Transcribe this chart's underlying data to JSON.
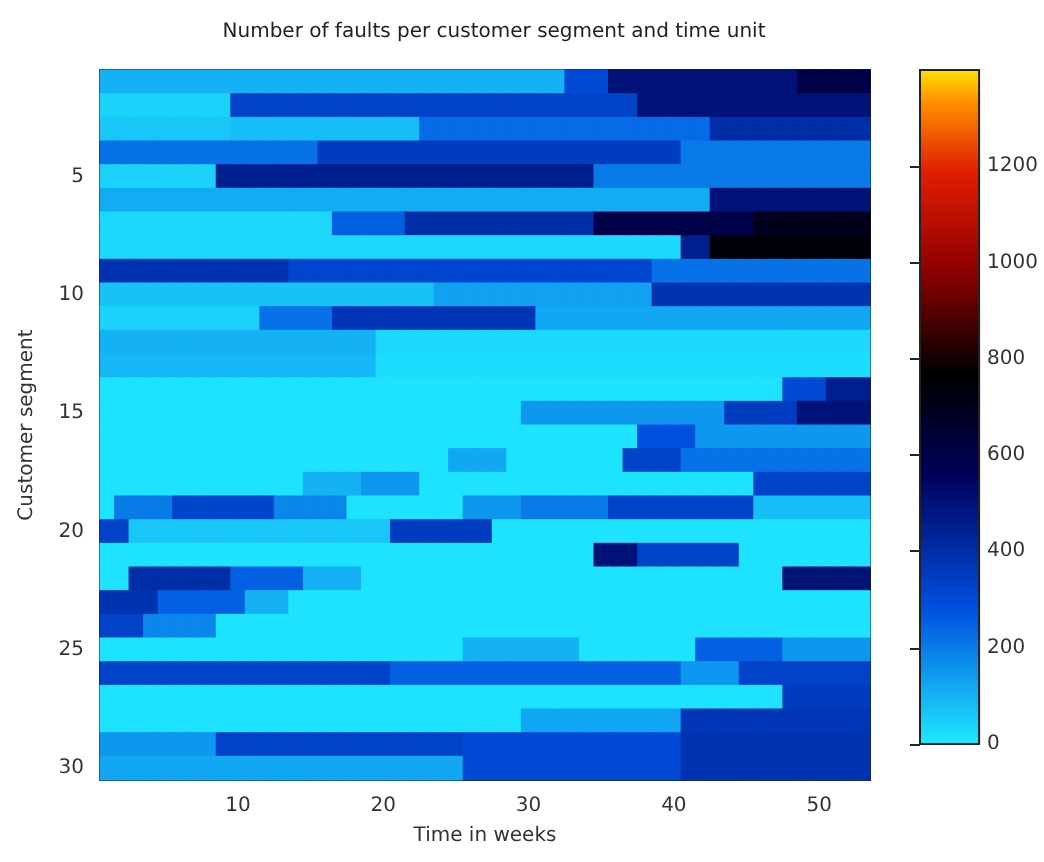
{
  "chart_data": {
    "type": "heatmap",
    "title": "Number of faults per customer segment and time unit",
    "xlabel": "Time in weeks",
    "ylabel": "Customer segment",
    "categories": [
      null,
      null,
      null,
      null,
      null,
      null,
      null,
      null,
      null,
      "10",
      null,
      null,
      null,
      null,
      null,
      null,
      null,
      null,
      null,
      "20",
      null,
      null,
      null,
      null,
      null,
      null,
      null,
      null,
      null,
      "30",
      null,
      null,
      null,
      null,
      null,
      null,
      null,
      null,
      null,
      "40",
      null,
      null,
      null,
      null,
      null,
      null,
      null,
      null,
      null,
      "50",
      null,
      null,
      null
    ],
    "y_categories": [
      null,
      null,
      null,
      null,
      "5",
      null,
      null,
      null,
      null,
      "10",
      null,
      null,
      null,
      null,
      "15",
      null,
      null,
      null,
      null,
      "20",
      null,
      null,
      null,
      null,
      "25",
      null,
      null,
      null,
      null,
      "30"
    ],
    "clim": [
      0,
      1400
    ],
    "cticks": [
      0,
      200,
      400,
      600,
      800,
      1000,
      1200
    ],
    "cells": [
      [
        100,
        100,
        100,
        100,
        100,
        100,
        100,
        100,
        100,
        100,
        100,
        100,
        100,
        100,
        100,
        100,
        100,
        100,
        100,
        100,
        100,
        100,
        100,
        100,
        100,
        100,
        100,
        100,
        100,
        100,
        100,
        100,
        300,
        300,
        300,
        500,
        500,
        500,
        500,
        500,
        500,
        500,
        500,
        500,
        500,
        500,
        500,
        500,
        600,
        600,
        600,
        600,
        600
      ],
      [
        40,
        40,
        40,
        40,
        40,
        40,
        40,
        40,
        40,
        330,
        330,
        330,
        330,
        330,
        330,
        330,
        330,
        330,
        330,
        330,
        330,
        330,
        330,
        330,
        330,
        330,
        330,
        330,
        330,
        330,
        330,
        330,
        330,
        330,
        330,
        330,
        330,
        500,
        500,
        500,
        500,
        500,
        500,
        500,
        500,
        500,
        500,
        500,
        500,
        500,
        500,
        500,
        500
      ],
      [
        60,
        60,
        60,
        60,
        60,
        60,
        60,
        60,
        60,
        80,
        80,
        80,
        80,
        80,
        80,
        80,
        80,
        80,
        80,
        80,
        80,
        80,
        230,
        230,
        230,
        230,
        230,
        230,
        230,
        230,
        230,
        230,
        230,
        230,
        230,
        230,
        230,
        230,
        230,
        230,
        230,
        230,
        400,
        400,
        400,
        400,
        400,
        400,
        400,
        400,
        400,
        400,
        400
      ],
      [
        220,
        220,
        220,
        220,
        220,
        220,
        220,
        220,
        220,
        220,
        220,
        220,
        220,
        220,
        220,
        350,
        350,
        350,
        350,
        350,
        350,
        350,
        350,
        350,
        350,
        350,
        350,
        350,
        350,
        350,
        350,
        350,
        350,
        350,
        350,
        350,
        350,
        350,
        350,
        350,
        200,
        200,
        200,
        200,
        200,
        200,
        200,
        200,
        200,
        200,
        200,
        200,
        200
      ],
      [
        40,
        40,
        40,
        40,
        40,
        40,
        40,
        40,
        450,
        450,
        450,
        450,
        450,
        450,
        450,
        450,
        450,
        450,
        450,
        450,
        450,
        450,
        450,
        450,
        450,
        450,
        450,
        450,
        450,
        450,
        450,
        450,
        450,
        450,
        200,
        200,
        200,
        200,
        200,
        200,
        200,
        200,
        200,
        200,
        200,
        200,
        200,
        200,
        200,
        200,
        200,
        200,
        200
      ],
      [
        110,
        110,
        110,
        110,
        110,
        110,
        110,
        110,
        110,
        110,
        110,
        110,
        110,
        110,
        110,
        110,
        110,
        110,
        110,
        110,
        110,
        110,
        110,
        110,
        110,
        110,
        110,
        110,
        110,
        110,
        110,
        110,
        110,
        110,
        110,
        110,
        110,
        110,
        110,
        110,
        110,
        110,
        500,
        500,
        500,
        500,
        500,
        500,
        500,
        500,
        500,
        500,
        500
      ],
      [
        30,
        30,
        30,
        30,
        30,
        30,
        30,
        30,
        30,
        30,
        30,
        30,
        30,
        30,
        30,
        30,
        250,
        250,
        250,
        250,
        250,
        400,
        400,
        400,
        400,
        400,
        400,
        400,
        400,
        400,
        400,
        400,
        400,
        400,
        600,
        600,
        600,
        600,
        600,
        600,
        600,
        600,
        600,
        600,
        600,
        700,
        700,
        700,
        700,
        700,
        700,
        700,
        700
      ],
      [
        30,
        30,
        30,
        30,
        30,
        30,
        30,
        30,
        30,
        30,
        30,
        30,
        30,
        30,
        30,
        30,
        30,
        30,
        30,
        30,
        30,
        30,
        30,
        30,
        30,
        30,
        30,
        30,
        30,
        30,
        30,
        30,
        30,
        30,
        30,
        30,
        30,
        30,
        30,
        30,
        450,
        450,
        750,
        750,
        750,
        750,
        750,
        750,
        750,
        750,
        750,
        750,
        750
      ],
      [
        380,
        380,
        380,
        380,
        380,
        380,
        380,
        380,
        380,
        380,
        380,
        380,
        380,
        320,
        320,
        320,
        320,
        320,
        320,
        320,
        320,
        320,
        320,
        320,
        320,
        320,
        320,
        320,
        320,
        320,
        320,
        320,
        320,
        320,
        320,
        320,
        320,
        320,
        220,
        220,
        220,
        220,
        220,
        220,
        220,
        220,
        220,
        220,
        220,
        220,
        220,
        220,
        220
      ],
      [
        70,
        70,
        70,
        70,
        70,
        70,
        70,
        70,
        70,
        70,
        70,
        70,
        70,
        70,
        70,
        70,
        70,
        70,
        70,
        70,
        70,
        70,
        70,
        130,
        130,
        130,
        130,
        130,
        130,
        130,
        130,
        130,
        130,
        130,
        130,
        130,
        130,
        130,
        380,
        380,
        380,
        380,
        380,
        380,
        380,
        380,
        380,
        380,
        380,
        380,
        380,
        380,
        380
      ],
      [
        40,
        40,
        40,
        40,
        40,
        40,
        40,
        40,
        40,
        40,
        40,
        220,
        220,
        220,
        220,
        220,
        370,
        370,
        370,
        370,
        370,
        370,
        370,
        370,
        370,
        370,
        370,
        370,
        370,
        370,
        120,
        120,
        120,
        120,
        120,
        120,
        120,
        120,
        120,
        120,
        120,
        120,
        120,
        120,
        120,
        120,
        120,
        120,
        120,
        120,
        120,
        120,
        120
      ],
      [
        100,
        100,
        100,
        100,
        100,
        100,
        100,
        100,
        100,
        100,
        100,
        100,
        100,
        100,
        100,
        100,
        100,
        100,
        100,
        30,
        30,
        30,
        30,
        30,
        30,
        30,
        30,
        30,
        30,
        30,
        30,
        30,
        30,
        30,
        30,
        30,
        30,
        30,
        30,
        30,
        30,
        30,
        30,
        30,
        30,
        30,
        30,
        30,
        30,
        30,
        30,
        30,
        30
      ],
      [
        90,
        90,
        90,
        90,
        90,
        90,
        90,
        90,
        90,
        90,
        90,
        90,
        90,
        90,
        90,
        90,
        90,
        90,
        90,
        20,
        20,
        20,
        20,
        20,
        20,
        20,
        20,
        20,
        20,
        20,
        20,
        20,
        20,
        20,
        20,
        20,
        20,
        20,
        20,
        20,
        20,
        20,
        20,
        20,
        20,
        20,
        20,
        20,
        20,
        20,
        20,
        20,
        20
      ],
      [
        10,
        10,
        10,
        10,
        10,
        10,
        10,
        10,
        10,
        10,
        10,
        10,
        10,
        10,
        10,
        10,
        10,
        10,
        10,
        10,
        10,
        10,
        10,
        10,
        10,
        10,
        10,
        10,
        10,
        10,
        10,
        10,
        10,
        10,
        10,
        10,
        10,
        10,
        10,
        10,
        10,
        10,
        10,
        10,
        10,
        10,
        10,
        300,
        300,
        300,
        450,
        450,
        450
      ],
      [
        10,
        10,
        10,
        10,
        10,
        10,
        10,
        10,
        10,
        10,
        10,
        10,
        10,
        10,
        10,
        10,
        10,
        10,
        10,
        10,
        10,
        10,
        10,
        10,
        10,
        10,
        10,
        10,
        10,
        150,
        150,
        150,
        150,
        150,
        150,
        150,
        150,
        150,
        150,
        150,
        150,
        150,
        150,
        350,
        350,
        350,
        350,
        350,
        500,
        500,
        500,
        500,
        500
      ],
      [
        10,
        10,
        10,
        10,
        10,
        10,
        10,
        10,
        10,
        10,
        10,
        10,
        10,
        10,
        10,
        10,
        10,
        10,
        10,
        10,
        10,
        10,
        10,
        10,
        10,
        10,
        10,
        10,
        10,
        10,
        10,
        10,
        10,
        10,
        10,
        10,
        10,
        280,
        280,
        280,
        280,
        150,
        150,
        150,
        150,
        150,
        150,
        150,
        150,
        150,
        150,
        150,
        150
      ],
      [
        10,
        10,
        10,
        10,
        10,
        10,
        10,
        10,
        10,
        10,
        10,
        10,
        10,
        10,
        10,
        10,
        10,
        10,
        10,
        10,
        10,
        10,
        10,
        10,
        120,
        120,
        120,
        120,
        10,
        10,
        10,
        10,
        10,
        10,
        10,
        10,
        330,
        330,
        330,
        330,
        220,
        220,
        220,
        220,
        220,
        220,
        220,
        220,
        220,
        220,
        220,
        220,
        220
      ],
      [
        10,
        10,
        10,
        10,
        10,
        10,
        10,
        10,
        10,
        10,
        10,
        10,
        10,
        10,
        100,
        100,
        100,
        100,
        150,
        150,
        150,
        150,
        10,
        10,
        10,
        10,
        10,
        10,
        10,
        10,
        10,
        10,
        10,
        10,
        10,
        10,
        10,
        10,
        10,
        10,
        10,
        10,
        10,
        10,
        10,
        330,
        330,
        330,
        330,
        330,
        330,
        330,
        330
      ],
      [
        10,
        200,
        200,
        200,
        200,
        320,
        320,
        320,
        320,
        320,
        320,
        320,
        180,
        180,
        180,
        180,
        180,
        10,
        10,
        10,
        10,
        10,
        10,
        10,
        10,
        150,
        150,
        150,
        150,
        200,
        200,
        200,
        200,
        200,
        200,
        330,
        330,
        330,
        330,
        330,
        330,
        330,
        330,
        330,
        330,
        80,
        80,
        80,
        80,
        80,
        80,
        80,
        80
      ],
      [
        330,
        330,
        60,
        60,
        60,
        60,
        60,
        60,
        60,
        60,
        60,
        60,
        60,
        60,
        60,
        60,
        60,
        60,
        60,
        60,
        350,
        350,
        350,
        350,
        350,
        350,
        350,
        10,
        10,
        10,
        10,
        10,
        10,
        10,
        10,
        10,
        10,
        10,
        10,
        10,
        10,
        10,
        10,
        10,
        10,
        10,
        10,
        10,
        10,
        10,
        10,
        10,
        10
      ],
      [
        10,
        10,
        10,
        10,
        10,
        10,
        10,
        10,
        10,
        10,
        10,
        10,
        10,
        10,
        10,
        10,
        10,
        10,
        10,
        10,
        10,
        10,
        10,
        10,
        10,
        10,
        10,
        10,
        10,
        10,
        10,
        10,
        10,
        10,
        500,
        500,
        500,
        330,
        330,
        330,
        330,
        330,
        330,
        330,
        10,
        10,
        10,
        10,
        10,
        10,
        10,
        10,
        10
      ],
      [
        10,
        10,
        400,
        400,
        400,
        400,
        400,
        400,
        400,
        250,
        250,
        250,
        250,
        250,
        100,
        100,
        100,
        100,
        10,
        10,
        10,
        10,
        10,
        10,
        10,
        10,
        10,
        10,
        10,
        10,
        10,
        10,
        10,
        10,
        10,
        10,
        10,
        10,
        10,
        10,
        10,
        10,
        10,
        10,
        10,
        10,
        10,
        500,
        500,
        500,
        500,
        500,
        500
      ],
      [
        380,
        380,
        380,
        380,
        250,
        250,
        250,
        250,
        250,
        250,
        100,
        100,
        100,
        10,
        10,
        10,
        10,
        10,
        10,
        10,
        10,
        10,
        10,
        10,
        10,
        10,
        10,
        10,
        10,
        10,
        10,
        10,
        10,
        10,
        10,
        10,
        10,
        10,
        10,
        10,
        10,
        10,
        10,
        10,
        10,
        10,
        10,
        10,
        10,
        10,
        10,
        10,
        10
      ],
      [
        330,
        330,
        330,
        180,
        180,
        180,
        180,
        180,
        10,
        10,
        10,
        10,
        10,
        10,
        10,
        10,
        10,
        10,
        10,
        10,
        10,
        10,
        10,
        10,
        10,
        10,
        10,
        10,
        10,
        10,
        10,
        10,
        10,
        10,
        10,
        10,
        10,
        10,
        10,
        10,
        10,
        10,
        10,
        10,
        10,
        10,
        10,
        10,
        10,
        10,
        10,
        10,
        10
      ],
      [
        10,
        10,
        10,
        10,
        10,
        10,
        10,
        10,
        10,
        10,
        10,
        10,
        10,
        10,
        10,
        10,
        10,
        10,
        10,
        10,
        10,
        10,
        10,
        10,
        10,
        100,
        100,
        100,
        100,
        100,
        100,
        100,
        100,
        10,
        10,
        10,
        10,
        10,
        10,
        10,
        10,
        250,
        250,
        250,
        250,
        250,
        250,
        150,
        150,
        150,
        150,
        150,
        150
      ],
      [
        330,
        330,
        330,
        330,
        330,
        330,
        330,
        330,
        330,
        330,
        330,
        330,
        330,
        330,
        330,
        330,
        330,
        330,
        330,
        330,
        250,
        250,
        250,
        250,
        250,
        250,
        250,
        250,
        250,
        250,
        250,
        250,
        250,
        250,
        250,
        250,
        250,
        250,
        250,
        250,
        150,
        150,
        150,
        150,
        330,
        330,
        330,
        330,
        330,
        330,
        330,
        330,
        330
      ],
      [
        10,
        10,
        10,
        10,
        10,
        10,
        10,
        10,
        10,
        10,
        10,
        10,
        10,
        10,
        10,
        10,
        10,
        10,
        10,
        10,
        10,
        10,
        10,
        10,
        10,
        10,
        10,
        10,
        10,
        10,
        10,
        10,
        10,
        10,
        10,
        10,
        10,
        10,
        10,
        10,
        10,
        10,
        10,
        10,
        10,
        10,
        10,
        350,
        350,
        350,
        350,
        350,
        350
      ],
      [
        10,
        10,
        10,
        10,
        10,
        10,
        10,
        10,
        10,
        10,
        10,
        10,
        10,
        10,
        10,
        10,
        10,
        10,
        10,
        10,
        10,
        10,
        10,
        10,
        10,
        10,
        10,
        10,
        10,
        120,
        120,
        120,
        120,
        120,
        120,
        120,
        120,
        120,
        120,
        120,
        370,
        370,
        370,
        370,
        370,
        370,
        370,
        370,
        370,
        370,
        370,
        370,
        370
      ],
      [
        150,
        150,
        150,
        150,
        150,
        150,
        150,
        150,
        330,
        330,
        330,
        330,
        330,
        330,
        330,
        330,
        330,
        330,
        330,
        330,
        330,
        330,
        330,
        330,
        330,
        300,
        300,
        300,
        300,
        300,
        300,
        300,
        300,
        300,
        300,
        300,
        300,
        300,
        300,
        300,
        380,
        380,
        380,
        380,
        380,
        380,
        380,
        380,
        380,
        380,
        380,
        380,
        380
      ],
      [
        120,
        120,
        120,
        120,
        120,
        120,
        120,
        120,
        120,
        120,
        120,
        120,
        120,
        120,
        120,
        120,
        120,
        120,
        120,
        120,
        120,
        120,
        120,
        120,
        120,
        300,
        300,
        300,
        300,
        300,
        300,
        300,
        300,
        300,
        300,
        300,
        300,
        300,
        300,
        300,
        380,
        380,
        380,
        380,
        380,
        380,
        380,
        380,
        380,
        380,
        380,
        380,
        380
      ]
    ]
  }
}
